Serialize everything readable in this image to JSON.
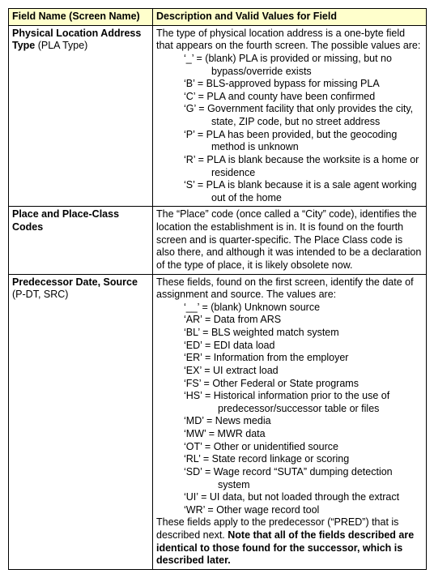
{
  "header": {
    "col1": "Field Name (Screen Name)",
    "col2": "Description and Valid Values for Field"
  },
  "rows": [
    {
      "name_bold": "Physical Location Address Type",
      "name_paren": " (PLA Type)",
      "intro": "The type of physical location address is a one-byte field that appears on the fourth screen.  The possible values are:",
      "codes": [
        {
          "c": "‘_’",
          "d": "= (blank) PLA is provided or missing, but no bypass/override exists"
        },
        {
          "c": "‘B’",
          "d": "= BLS-approved bypass for missing PLA"
        },
        {
          "c": "‘C’",
          "d": "= PLA and county have been confirmed"
        },
        {
          "c": "‘G’",
          "d": "= Government facility that only provides the city, state, ZIP code, but no street address"
        },
        {
          "c": "‘P’",
          "d": "= PLA has been provided, but the geocoding method is unknown"
        },
        {
          "c": "‘R’",
          "d": "= PLA is blank because the worksite is a home or residence"
        },
        {
          "c": "‘S’",
          "d": "= PLA is blank because it is a sale agent working out of the home"
        }
      ],
      "outro": "",
      "wide": false
    },
    {
      "name_bold": "Place and Place-Class Codes",
      "name_paren": "",
      "intro": "The “Place” code (once called a “City” code), identifies the location the establishment is in.  It is found on the fourth screen and is quarter-specific.  The Place Class code is also there, and although it was intended to be a declaration of the type of place, it is likely obsolete now.",
      "codes": [],
      "outro": "",
      "wide": false
    },
    {
      "name_bold": "Predecessor Date, Source",
      "name_paren": " (P-DT, SRC)",
      "intro": "These fields, found on the first screen, identify the date of assignment and source.  The values are:",
      "codes": [
        {
          "c": "‘__’",
          "d": "= (blank) Unknown source"
        },
        {
          "c": "‘AR’",
          "d": "= Data from ARS"
        },
        {
          "c": "‘BL’",
          "d": "= BLS weighted match system"
        },
        {
          "c": "‘ED’",
          "d": "= EDI data load"
        },
        {
          "c": "‘ER’",
          "d": "= Information from the employer"
        },
        {
          "c": "‘EX’",
          "d": "= UI extract load"
        },
        {
          "c": "‘FS’",
          "d": "= Other Federal or State programs"
        },
        {
          "c": "‘HS’",
          "d": "= Historical information prior to the use of predecessor/successor table or files"
        },
        {
          "c": "‘MD’",
          "d": "= News media"
        },
        {
          "c": "‘MW’",
          "d": "= MWR data"
        },
        {
          "c": "‘OT’",
          "d": "= Other or unidentified source"
        },
        {
          "c": "‘RL’",
          "d": "= State record linkage or scoring"
        },
        {
          "c": "‘SD’",
          "d": "= Wage record “SUTA” dumping detection system"
        },
        {
          "c": "‘UI’",
          "d": "= UI data, but not loaded through the extract"
        },
        {
          "c": "‘WR’",
          "d": "= Other wage record tool"
        }
      ],
      "outro_plain": "These fields apply to the predecessor (“PRED”) that is described next.  ",
      "outro_bold": "Note that all of the fields described are identical to those found for the successor, which is described later.",
      "wide": true
    }
  ]
}
